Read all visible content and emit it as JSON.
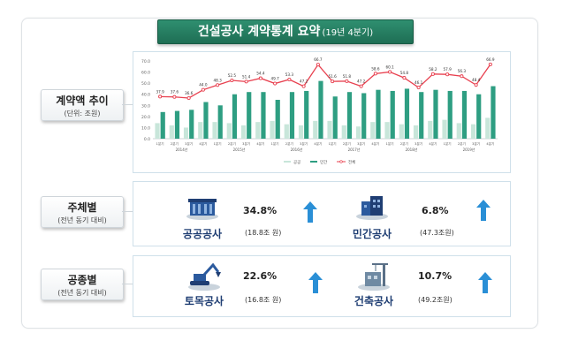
{
  "title": "건설공사 계약통계 요약",
  "title_sub": "(19년 4분기)",
  "rows": {
    "trend": {
      "label": "계약액 추이",
      "sub": "(단위: 조원)"
    },
    "by_entity": {
      "label": "주체별",
      "sub": "(전년 동기 대비)"
    },
    "by_type": {
      "label": "공종별",
      "sub": "(전년 동기 대비)"
    }
  },
  "entity_items": [
    {
      "name": "공공공사",
      "pct": "34.8%",
      "amount": "(18.8조 원)",
      "icon": "public-building-icon",
      "trend": "up"
    },
    {
      "name": "민간공사",
      "pct": "6.8%",
      "amount": "(47.3조원)",
      "icon": "private-building-icon",
      "trend": "up"
    }
  ],
  "type_items": [
    {
      "name": "토목공사",
      "pct": "22.6%",
      "amount": "(16.8조 원)",
      "icon": "excavator-icon",
      "trend": "up"
    },
    {
      "name": "건축공사",
      "pct": "10.7%",
      "amount": "(49.2조원)",
      "icon": "crane-building-icon",
      "trend": "up"
    }
  ],
  "colors": {
    "public": "#c8e6da",
    "private": "#2e9e82",
    "total": "#e8404f",
    "title_bg": "#237a5e",
    "arrow": "#2a8fd6",
    "label_text": "#1f3e73"
  },
  "chart_data": {
    "type": "bar",
    "title": "",
    "ylim": [
      0,
      70
    ],
    "yticks": [
      "0.0",
      "10.0",
      "20.0",
      "30.0",
      "40.0",
      "50.0",
      "60.0",
      "70.0"
    ],
    "categories": [
      "1분기",
      "2분기",
      "3분기",
      "4분기",
      "1분기",
      "2분기",
      "3분기",
      "4분기",
      "1분기",
      "2분기",
      "3분기",
      "4분기",
      "1분기",
      "2분기",
      "3분기",
      "4분기",
      "1분기",
      "2분기",
      "3분기",
      "4분기",
      "1분기",
      "2분기",
      "3분기",
      "4분기"
    ],
    "years": [
      "2014년",
      "2015년",
      "2016년",
      "2017년",
      "2018년",
      "2019년"
    ],
    "series": [
      {
        "name": "공공",
        "kind": "bar",
        "values": [
          14,
          12,
          10,
          15,
          15,
          14,
          12,
          15,
          16,
          13,
          12,
          16,
          16,
          12,
          11,
          15,
          15,
          13,
          12,
          16,
          17,
          14,
          13,
          18.8
        ]
      },
      {
        "name": "민간",
        "kind": "bar",
        "values": [
          24,
          25,
          26,
          33,
          30,
          40,
          42,
          42,
          35,
          42,
          43,
          52,
          38,
          42,
          41,
          44,
          43,
          45,
          42,
          44,
          43,
          43,
          40,
          47.3
        ]
      },
      {
        "name": "전체",
        "kind": "line",
        "values": [
          37.9,
          37.6,
          36.6,
          44.0,
          48.3,
          52.5,
          51.4,
          54.4,
          49.7,
          53.3,
          47.2,
          66.7,
          51.6,
          51.8,
          47.2,
          58.6,
          60.1,
          54.8,
          46.1,
          58.2,
          57.9,
          56.3,
          48.4,
          66.9
        ]
      }
    ],
    "data_labels": [
      "37.9",
      "37.6",
      "36.6",
      "44.0",
      "48.3",
      "52.5",
      "51.4",
      "54.4",
      "49.7",
      "53.3",
      "47.2",
      "66.7",
      "51.6",
      "51.8",
      "47.2",
      "58.6",
      "60.1",
      "54.8",
      "46.1",
      "58.2",
      "57.9",
      "56.3",
      "48.4",
      "66.9"
    ],
    "legend": [
      "공공",
      "민간",
      "전체"
    ],
    "legend_position": "bottom",
    "grid": false
  }
}
